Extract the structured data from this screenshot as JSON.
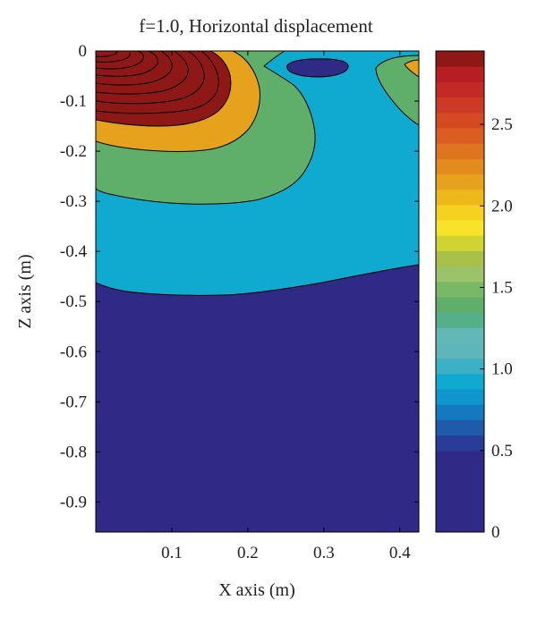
{
  "chart_data": {
    "type": "contour",
    "title": "f=1.0, Horizontal displacement",
    "xlabel": "X axis (m)",
    "ylabel": "Z axis (m)",
    "xlim": [
      0,
      0.425
    ],
    "ylim": [
      -0.96,
      0
    ],
    "xticks": [
      "0.1",
      "0.2",
      "0.3",
      "0.4"
    ],
    "yticks": [
      "0",
      "-0.1",
      "-0.2",
      "-0.3",
      "-0.4",
      "-0.5",
      "-0.6",
      "-0.7",
      "-0.8",
      "-0.9"
    ],
    "colorbar": {
      "range": [
        0,
        2.95
      ],
      "ticks": [
        "0",
        "0.5",
        "1.0",
        "1.5",
        "2.0",
        "2.5"
      ],
      "colormap": [
        "#2e2a86",
        "#283c98",
        "#1f5aab",
        "#1479c0",
        "#0f96cc",
        "#10a9cf",
        "#3cb0c4",
        "#5eb6bb",
        "#62b8b6",
        "#55b08a",
        "#5fae6a",
        "#79b864",
        "#9bc36a",
        "#a8c048",
        "#cfd432",
        "#f6e32a",
        "#f4d21f",
        "#ecb81a",
        "#e6a21c",
        "#e28a1d",
        "#de741f",
        "#da5e22",
        "#d64a23",
        "#cc3925",
        "#c42a25",
        "#b51e22",
        "#8e1816"
      ]
    },
    "levels": [
      {
        "value": 0.5,
        "color": "#2e2a86"
      },
      {
        "value": 1.0,
        "color": "#10a9cf"
      },
      {
        "value": 1.5,
        "color": "#5fae6a"
      },
      {
        "value": 2.0,
        "color": "#e6a21c"
      },
      {
        "value": 2.5,
        "color": "#8e1816"
      }
    ]
  }
}
